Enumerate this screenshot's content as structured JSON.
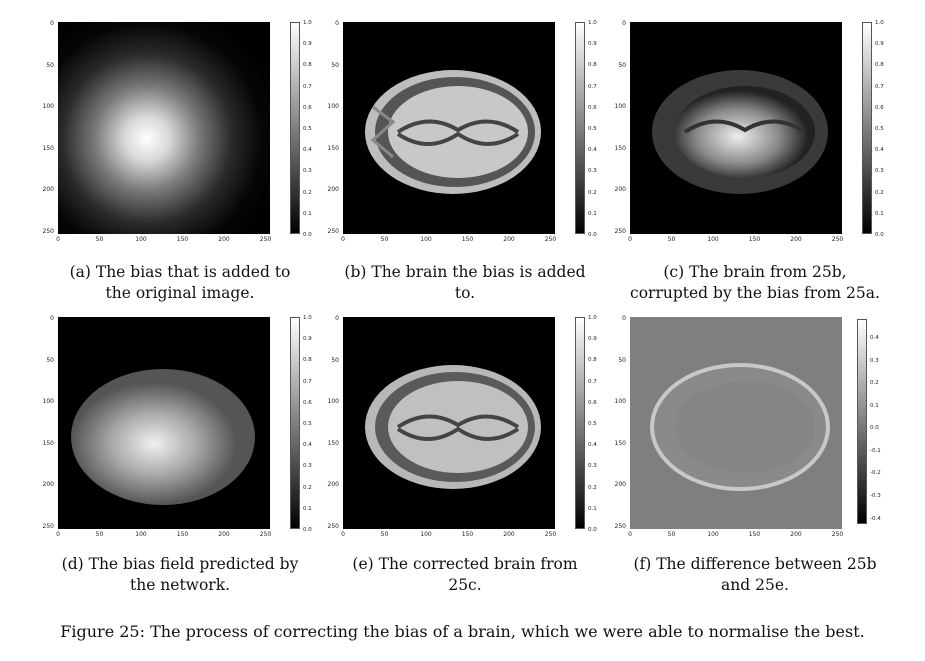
{
  "panels": [
    {
      "caption_line1": "(a) The bias that is added to",
      "caption_line2": "the original image."
    },
    {
      "caption_line1": "(b) The brain the bias is added",
      "caption_line2": "to."
    },
    {
      "caption_line1": "(c) The brain from 25b,",
      "caption_line2": "corrupted by the bias from 25a."
    },
    {
      "caption_line1": "(d) The bias field predicted by",
      "caption_line2": "the network."
    },
    {
      "caption_line1": "(e) The corrected brain from",
      "caption_line2": "25c."
    },
    {
      "caption_line1": "(f) The difference between 25b",
      "caption_line2": "and 25e."
    }
  ],
  "axis_ticks": [
    "0",
    "50",
    "100",
    "150",
    "200",
    "250"
  ],
  "colorbar_ticks": [
    "1.0",
    "0.9",
    "0.8",
    "0.7",
    "0.6",
    "0.5",
    "0.4",
    "0.3",
    "0.2",
    "0.1",
    "0.0"
  ],
  "colorbar_f_ticks": [
    "0.4",
    "0.3",
    "0.2",
    "0.1",
    "0.0",
    "-0.1",
    "-0.2",
    "-0.3",
    "-0.4"
  ],
  "figure_caption": "Figure 25: The process of correcting the bias of a brain, which we were able to normalise the best."
}
